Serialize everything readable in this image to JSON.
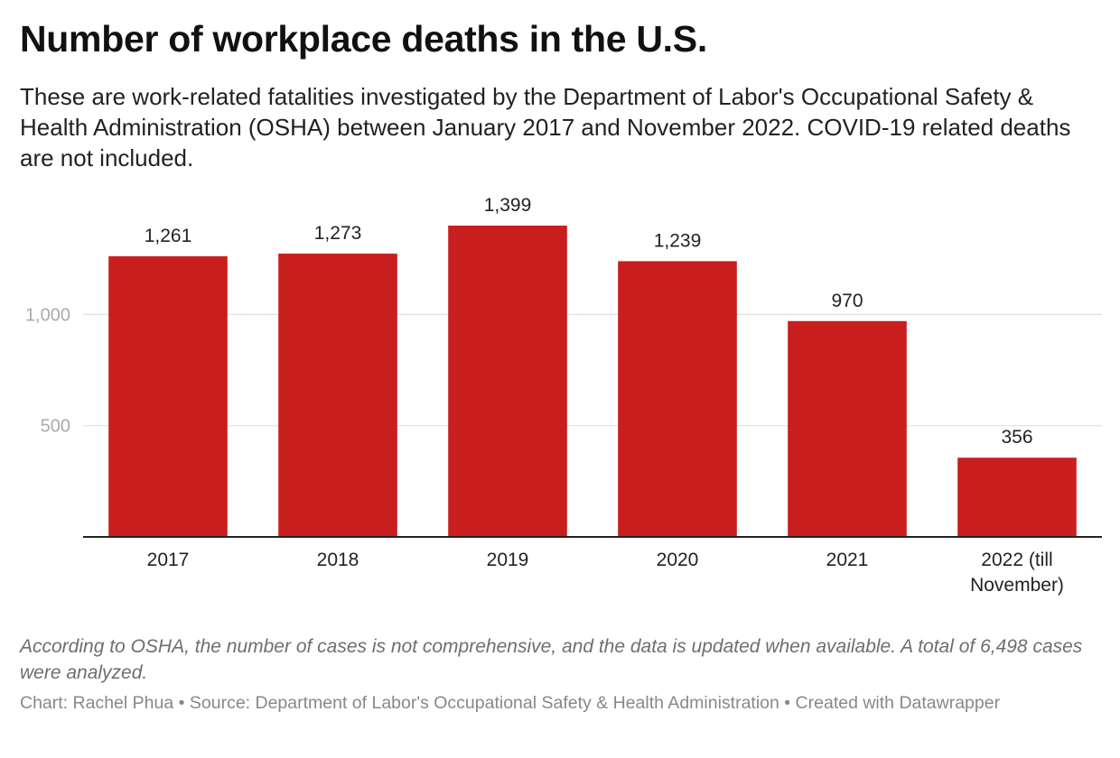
{
  "title": "Number of workplace deaths in the U.S.",
  "subtitle": "These are work-related fatalities investigated by the Department of Labor's Occupational Safety & Health Administration (OSHA) between January 2017 and November 2022. COVID-19 related deaths are not included.",
  "notes": "According to OSHA, the number of cases is not comprehensive, and the data is updated when available. A total of 6,498 cases were analyzed.",
  "credit": {
    "chart_prefix": "Chart: ",
    "author": "Rachel Phua",
    "separator": " • ",
    "source_prefix": "Source: ",
    "source": "Department of Labor's Occupational Safety & Health Administration",
    "tool_prefix": "Created with ",
    "tool": "Datawrapper"
  },
  "colors": {
    "bar": "#c81e1e",
    "grid": "#e0e0e0",
    "axis": "#222222",
    "tick_label": "#aaaaaa",
    "value_label": "#222222",
    "category_label": "#222222"
  },
  "chart_data": {
    "type": "bar",
    "title": "Number of workplace deaths in the U.S.",
    "categories": [
      "2017",
      "2018",
      "2019",
      "2020",
      "2021",
      "2022 (till November)"
    ],
    "category_lines": [
      [
        "2017"
      ],
      [
        "2018"
      ],
      [
        "2019"
      ],
      [
        "2020"
      ],
      [
        "2021"
      ],
      [
        "2022 (till",
        "November)"
      ]
    ],
    "values": [
      1261,
      1273,
      1399,
      1239,
      970,
      356
    ],
    "value_labels": [
      "1,261",
      "1,273",
      "1,399",
      "1,239",
      "970",
      "356"
    ],
    "yticks": [
      500,
      1000
    ],
    "ytick_labels": [
      "500",
      "1,000"
    ],
    "ylim": [
      0,
      1399
    ],
    "xlabel": "",
    "ylabel": "",
    "grid": true,
    "legend": "none"
  }
}
